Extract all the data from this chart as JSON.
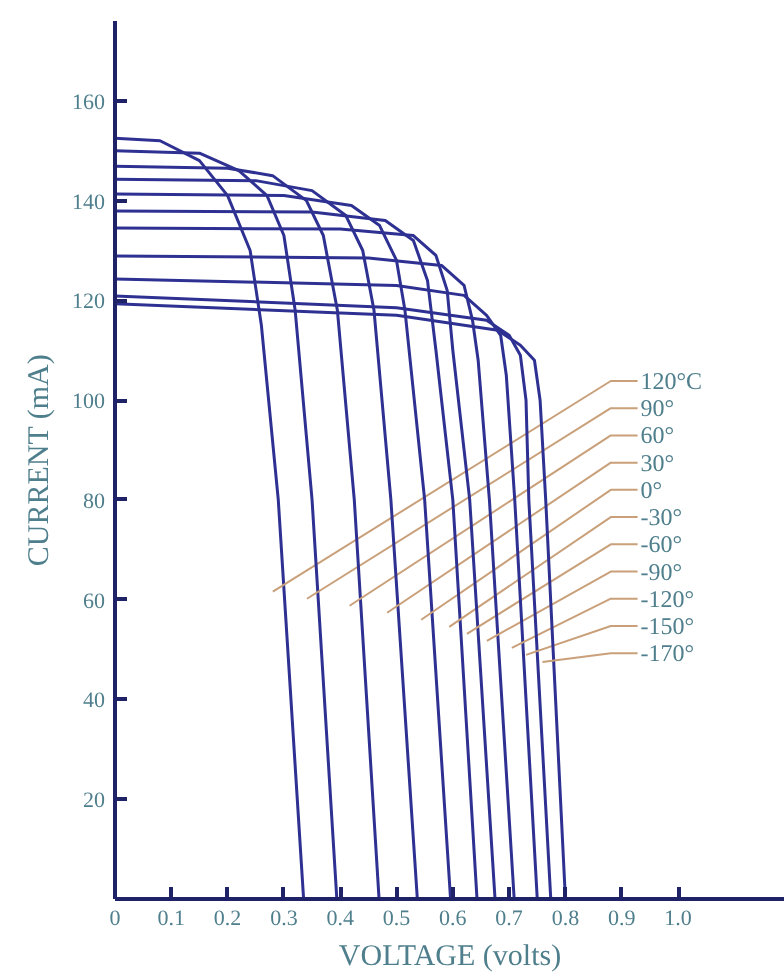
{
  "chart_data": {
    "type": "line",
    "xlabel": "VOLTAGE (volts)",
    "ylabel": "CURRENT (mA)",
    "xlim": [
      0,
      1.19
    ],
    "ylim": [
      0,
      176
    ],
    "xticks": [
      0,
      0.1,
      0.2,
      0.3,
      0.4,
      0.5,
      0.6,
      0.7,
      0.8,
      0.9,
      {
        "value": 1,
        "label": "1.0"
      }
    ],
    "yticks": [
      20,
      40,
      60,
      80,
      100,
      120,
      140,
      160
    ],
    "series": [
      {
        "name": "120°C",
        "color": "#2e3192",
        "x": [
          0,
          0.08,
          0.15,
          0.2,
          0.24,
          0.26,
          0.29,
          0.335
        ],
        "values": [
          152.5,
          152,
          148,
          141,
          130,
          115,
          80,
          0
        ]
      },
      {
        "name": "90°",
        "color": "#2e3192",
        "x": [
          0,
          0.15,
          0.22,
          0.27,
          0.3,
          0.32,
          0.35,
          0.394
        ],
        "values": [
          150,
          149.5,
          146,
          141,
          133,
          118,
          80,
          0
        ]
      },
      {
        "name": "60°",
        "color": "#2e3192",
        "x": [
          0,
          0.2,
          0.28,
          0.34,
          0.37,
          0.395,
          0.425,
          0.469
        ],
        "values": [
          146.9,
          146.5,
          145,
          140,
          133,
          118,
          80,
          0
        ]
      },
      {
        "name": "30°",
        "color": "#2e3192",
        "x": [
          0,
          0.25,
          0.35,
          0.41,
          0.44,
          0.46,
          0.49,
          0.537
        ],
        "values": [
          144.3,
          144,
          142,
          137,
          130,
          118,
          80,
          0
        ]
      },
      {
        "name": "0°",
        "color": "#2e3192",
        "x": [
          0,
          0.3,
          0.42,
          0.47,
          0.5,
          0.515,
          0.55,
          0.596
        ],
        "values": [
          141.3,
          141,
          139,
          135,
          128,
          118,
          80,
          0
        ]
      },
      {
        "name": "-30°",
        "color": "#2e3192",
        "x": [
          0,
          0.35,
          0.48,
          0.53,
          0.555,
          0.57,
          0.6,
          0.643
        ],
        "values": [
          137.9,
          137.7,
          136,
          132,
          124,
          110,
          80,
          0
        ]
      },
      {
        "name": "-60°",
        "color": "#2e3192",
        "x": [
          0,
          0.4,
          0.53,
          0.57,
          0.59,
          0.6,
          0.63,
          0.675
        ],
        "values": [
          134.5,
          134.3,
          133,
          129,
          122,
          110,
          80,
          0
        ]
      },
      {
        "name": "-90°",
        "color": "#2e3192",
        "x": [
          0,
          0.45,
          0.58,
          0.62,
          0.635,
          0.645,
          0.665,
          0.709
        ],
        "values": [
          128.9,
          128.5,
          127,
          123,
          116,
          108,
          80,
          0
        ]
      },
      {
        "name": "-120°",
        "color": "#2e3192",
        "x": [
          0,
          0.5,
          0.62,
          0.66,
          0.685,
          0.695,
          0.71,
          0.75
        ],
        "values": [
          124.3,
          123,
          121,
          117,
          113,
          105,
          80,
          0
        ]
      },
      {
        "name": "-150°",
        "color": "#2e3192",
        "x": [
          0,
          0.5,
          0.66,
          0.7,
          0.72,
          0.73,
          0.735,
          0.774
        ],
        "values": [
          120.9,
          118.5,
          116,
          113,
          109,
          100,
          80,
          0
        ]
      },
      {
        "name": "-170°",
        "color": "#2e3192",
        "x": [
          0,
          0.5,
          0.68,
          0.72,
          0.745,
          0.755,
          0.765,
          0.8
        ],
        "values": [
          119.3,
          117,
          114,
          111,
          108,
          100,
          80,
          0
        ]
      }
    ]
  }
}
